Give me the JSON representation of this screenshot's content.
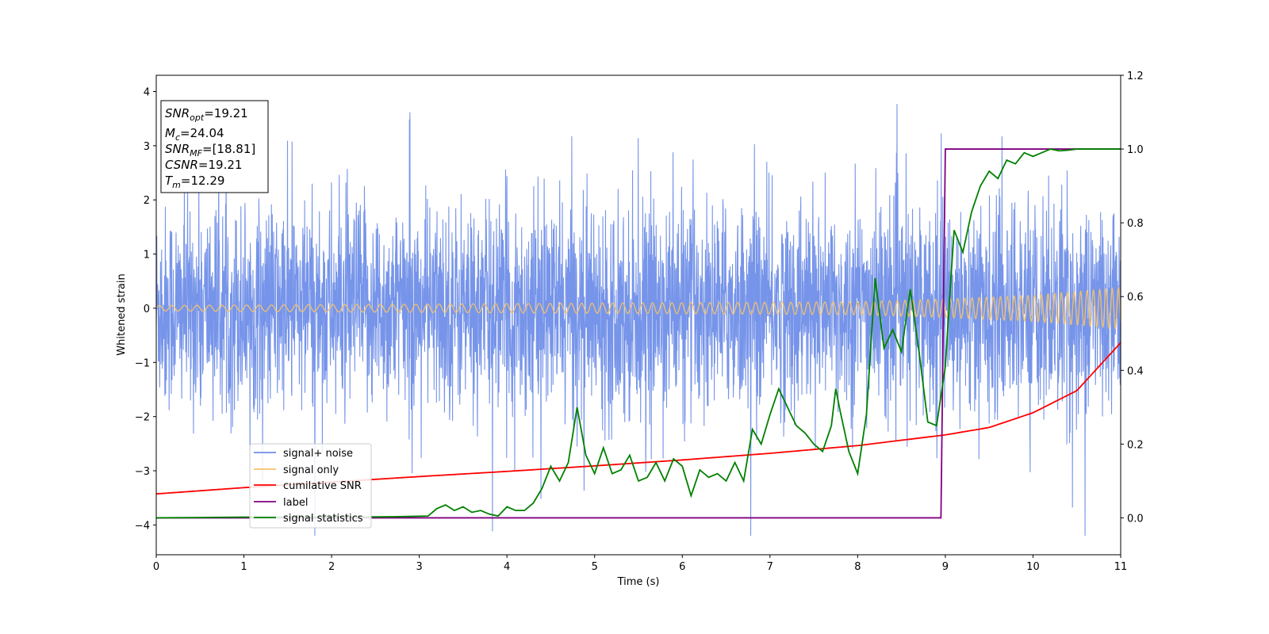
{
  "chart_data": {
    "type": "line",
    "xlabel": "Time (s)",
    "ylabel": "Whitened strain",
    "xlim": [
      0,
      11
    ],
    "ylim_left": [
      -4.55,
      4.3
    ],
    "ylim_right": [
      -0.1,
      1.2
    ],
    "x_ticks": [
      "0",
      "1",
      "2",
      "3",
      "4",
      "5",
      "6",
      "7",
      "8",
      "9",
      "10",
      "11"
    ],
    "y_left_ticks": [
      "−4",
      "−3",
      "−2",
      "−1",
      "0",
      "1",
      "2",
      "3",
      "4"
    ],
    "y_right_ticks": [
      "0.0",
      "0.2",
      "0.4",
      "0.6",
      "0.8",
      "1.0",
      "1.2"
    ],
    "grid": false,
    "legend_position": "lower-left",
    "info_box": {
      "lines": [
        {
          "base": "SNR",
          "sub": "opt",
          "value": "=19.21"
        },
        {
          "base": "M",
          "sub": "c",
          "value": "=24.04"
        },
        {
          "base": "SNR",
          "sub": "MF",
          "value": "=[18.81]"
        },
        {
          "base": "CSNR",
          "sub": "",
          "value": "=19.21"
        },
        {
          "base": "T",
          "sub": "m",
          "value": "=12.29"
        }
      ]
    },
    "series": [
      {
        "name": "signal+ noise",
        "color": "#6f8ee8",
        "axis": "left",
        "description_values": {
          "amplitude_std": 1.0,
          "min": -4.2,
          "max": 3.9
        }
      },
      {
        "name": "signal only",
        "color": "#f5c26b",
        "axis": "left",
        "envelope": {
          "x": [
            0,
            8,
            9,
            10,
            11
          ],
          "amplitude": [
            0.05,
            0.12,
            0.17,
            0.24,
            0.38
          ]
        }
      },
      {
        "name": "cumilative SNR",
        "color": "#ff0000",
        "axis": "right",
        "x": [
          0,
          1,
          2,
          3,
          4,
          5,
          6,
          7,
          8,
          9,
          9.5,
          10,
          10.5,
          11
        ],
        "y": [
          0.065,
          0.082,
          0.097,
          0.112,
          0.126,
          0.141,
          0.157,
          0.175,
          0.196,
          0.225,
          0.245,
          0.285,
          0.345,
          0.475
        ]
      },
      {
        "name": "label",
        "color": "#800080",
        "axis": "right",
        "x": [
          0,
          8.95,
          9.0,
          11
        ],
        "y": [
          0.0,
          0.0,
          1.0,
          1.0
        ]
      },
      {
        "name": "signal statistics",
        "color": "#008000",
        "axis": "right",
        "x": [
          0,
          1,
          2,
          2.7,
          3.1,
          3.2,
          3.3,
          3.4,
          3.5,
          3.6,
          3.7,
          3.8,
          3.9,
          4.0,
          4.1,
          4.2,
          4.3,
          4.4,
          4.5,
          4.6,
          4.7,
          4.8,
          4.9,
          5.0,
          5.1,
          5.2,
          5.3,
          5.4,
          5.5,
          5.6,
          5.7,
          5.8,
          5.9,
          6.0,
          6.1,
          6.2,
          6.3,
          6.4,
          6.5,
          6.6,
          6.7,
          6.8,
          6.9,
          7.0,
          7.1,
          7.2,
          7.3,
          7.4,
          7.5,
          7.6,
          7.7,
          7.75,
          7.8,
          7.9,
          8.0,
          8.1,
          8.2,
          8.3,
          8.4,
          8.5,
          8.6,
          8.7,
          8.8,
          8.9,
          9.0,
          9.05,
          9.1,
          9.2,
          9.3,
          9.4,
          9.5,
          9.6,
          9.7,
          9.8,
          9.9,
          10.0,
          10.1,
          10.2,
          10.3,
          10.4,
          10.5,
          10.6,
          11
        ],
        "y": [
          0.0,
          0.002,
          0.002,
          0.003,
          0.005,
          0.025,
          0.035,
          0.02,
          0.03,
          0.015,
          0.02,
          0.01,
          0.005,
          0.03,
          0.02,
          0.02,
          0.04,
          0.08,
          0.14,
          0.1,
          0.15,
          0.3,
          0.17,
          0.12,
          0.19,
          0.12,
          0.13,
          0.17,
          0.1,
          0.11,
          0.15,
          0.1,
          0.16,
          0.14,
          0.06,
          0.13,
          0.11,
          0.12,
          0.1,
          0.15,
          0.1,
          0.24,
          0.2,
          0.28,
          0.35,
          0.3,
          0.25,
          0.23,
          0.2,
          0.18,
          0.25,
          0.35,
          0.29,
          0.18,
          0.12,
          0.28,
          0.65,
          0.46,
          0.51,
          0.45,
          0.62,
          0.45,
          0.26,
          0.25,
          0.41,
          0.6,
          0.78,
          0.72,
          0.83,
          0.9,
          0.94,
          0.92,
          0.97,
          0.96,
          0.99,
          0.98,
          0.99,
          1.0,
          0.995,
          0.997,
          1.0,
          1.0,
          1.0
        ]
      }
    ]
  }
}
